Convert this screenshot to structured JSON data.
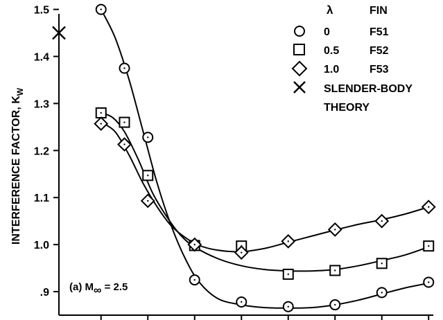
{
  "chart_data": {
    "type": "line",
    "ylabel": "INTERFERENCE FACTOR, K",
    "ylabel_subscript": "W",
    "xlabel": "",
    "ylim": [
      0.85,
      1.52
    ],
    "xlim": [
      -0.9,
      7.1
    ],
    "y_ticks": [
      {
        "value": 0.9,
        "label": ".9"
      },
      {
        "value": 1.0,
        "label": "1.0"
      },
      {
        "value": 1.1,
        "label": "1.1"
      },
      {
        "value": 1.2,
        "label": "1.2"
      },
      {
        "value": 1.3,
        "label": "1.3"
      },
      {
        "value": 1.4,
        "label": "1.4"
      },
      {
        "value": 1.5,
        "label": "1.5"
      }
    ],
    "x_ticks": [
      0,
      1,
      2,
      3,
      4,
      5,
      6,
      7
    ],
    "x_tick_labels_shown": false,
    "grid": false,
    "annotation": {
      "prefix": "(a) M",
      "subscript": "∞",
      "suffix": " = 2.5"
    },
    "legend": {
      "placement": "top-right",
      "header": {
        "lambda": "λ",
        "fin": "FIN"
      },
      "entries": [
        {
          "marker": "circle",
          "lambda": "0",
          "fin": "F51"
        },
        {
          "marker": "square",
          "lambda": "0.5",
          "fin": "F52"
        },
        {
          "marker": "diamond",
          "lambda": "1.0",
          "fin": "F53"
        },
        {
          "marker": "x",
          "lines": [
            "SLENDER-BODY",
            "THEORY"
          ]
        }
      ]
    },
    "theory_point": {
      "marker": "x",
      "x": -0.9,
      "y": 1.45
    },
    "series": [
      {
        "marker": "circle",
        "points": [
          [
            0,
            1.5
          ],
          [
            0.5,
            1.375
          ],
          [
            1,
            1.228
          ],
          [
            2,
            0.925
          ],
          [
            3,
            0.878
          ],
          [
            4,
            0.868
          ],
          [
            5,
            0.872
          ],
          [
            6,
            0.898
          ],
          [
            7,
            0.92
          ]
        ],
        "curve": [
          [
            0,
            1.5
          ],
          [
            0.3,
            1.44
          ],
          [
            0.6,
            1.35
          ],
          [
            0.9,
            1.24
          ],
          [
            1.2,
            1.13
          ],
          [
            1.5,
            1.04
          ],
          [
            1.8,
            0.97
          ],
          [
            2.1,
            0.92
          ],
          [
            2.5,
            0.885
          ],
          [
            3,
            0.872
          ],
          [
            3.5,
            0.866
          ],
          [
            4,
            0.865
          ],
          [
            4.5,
            0.866
          ],
          [
            5,
            0.872
          ],
          [
            5.5,
            0.882
          ],
          [
            6,
            0.895
          ],
          [
            6.5,
            0.908
          ],
          [
            7,
            0.918
          ]
        ]
      },
      {
        "marker": "square",
        "points": [
          [
            0,
            1.28
          ],
          [
            0.5,
            1.26
          ],
          [
            1,
            1.147
          ],
          [
            2,
            0.998
          ],
          [
            3,
            0.997
          ],
          [
            4,
            0.937
          ],
          [
            5,
            0.945
          ],
          [
            6,
            0.96
          ],
          [
            7,
            0.997
          ]
        ],
        "curve": [
          [
            0,
            1.28
          ],
          [
            0.25,
            1.27
          ],
          [
            0.5,
            1.24
          ],
          [
            0.8,
            1.18
          ],
          [
            1.1,
            1.11
          ],
          [
            1.4,
            1.06
          ],
          [
            1.7,
            1.02
          ],
          [
            2,
            0.995
          ],
          [
            2.5,
            0.97
          ],
          [
            3,
            0.955
          ],
          [
            3.5,
            0.947
          ],
          [
            4,
            0.944
          ],
          [
            4.5,
            0.944
          ],
          [
            5,
            0.947
          ],
          [
            5.5,
            0.955
          ],
          [
            6,
            0.966
          ],
          [
            6.5,
            0.978
          ],
          [
            7,
            0.995
          ]
        ]
      },
      {
        "marker": "diamond",
        "points": [
          [
            0,
            1.257
          ],
          [
            0.5,
            1.213
          ],
          [
            1,
            1.093
          ],
          [
            2,
            1.0
          ],
          [
            3,
            0.983
          ],
          [
            4,
            1.007
          ],
          [
            5,
            1.032
          ],
          [
            6,
            1.05
          ],
          [
            7,
            1.08
          ]
        ],
        "curve": [
          [
            0,
            1.26
          ],
          [
            0.3,
            1.24
          ],
          [
            0.6,
            1.19
          ],
          [
            0.9,
            1.13
          ],
          [
            1.2,
            1.08
          ],
          [
            1.5,
            1.04
          ],
          [
            1.8,
            1.015
          ],
          [
            2.1,
            0.998
          ],
          [
            2.5,
            0.988
          ],
          [
            3,
            0.985
          ],
          [
            3.5,
            0.992
          ],
          [
            4,
            1.005
          ],
          [
            4.5,
            1.018
          ],
          [
            5,
            1.031
          ],
          [
            5.5,
            1.043
          ],
          [
            6,
            1.053
          ],
          [
            6.5,
            1.065
          ],
          [
            7,
            1.08
          ]
        ]
      }
    ]
  }
}
